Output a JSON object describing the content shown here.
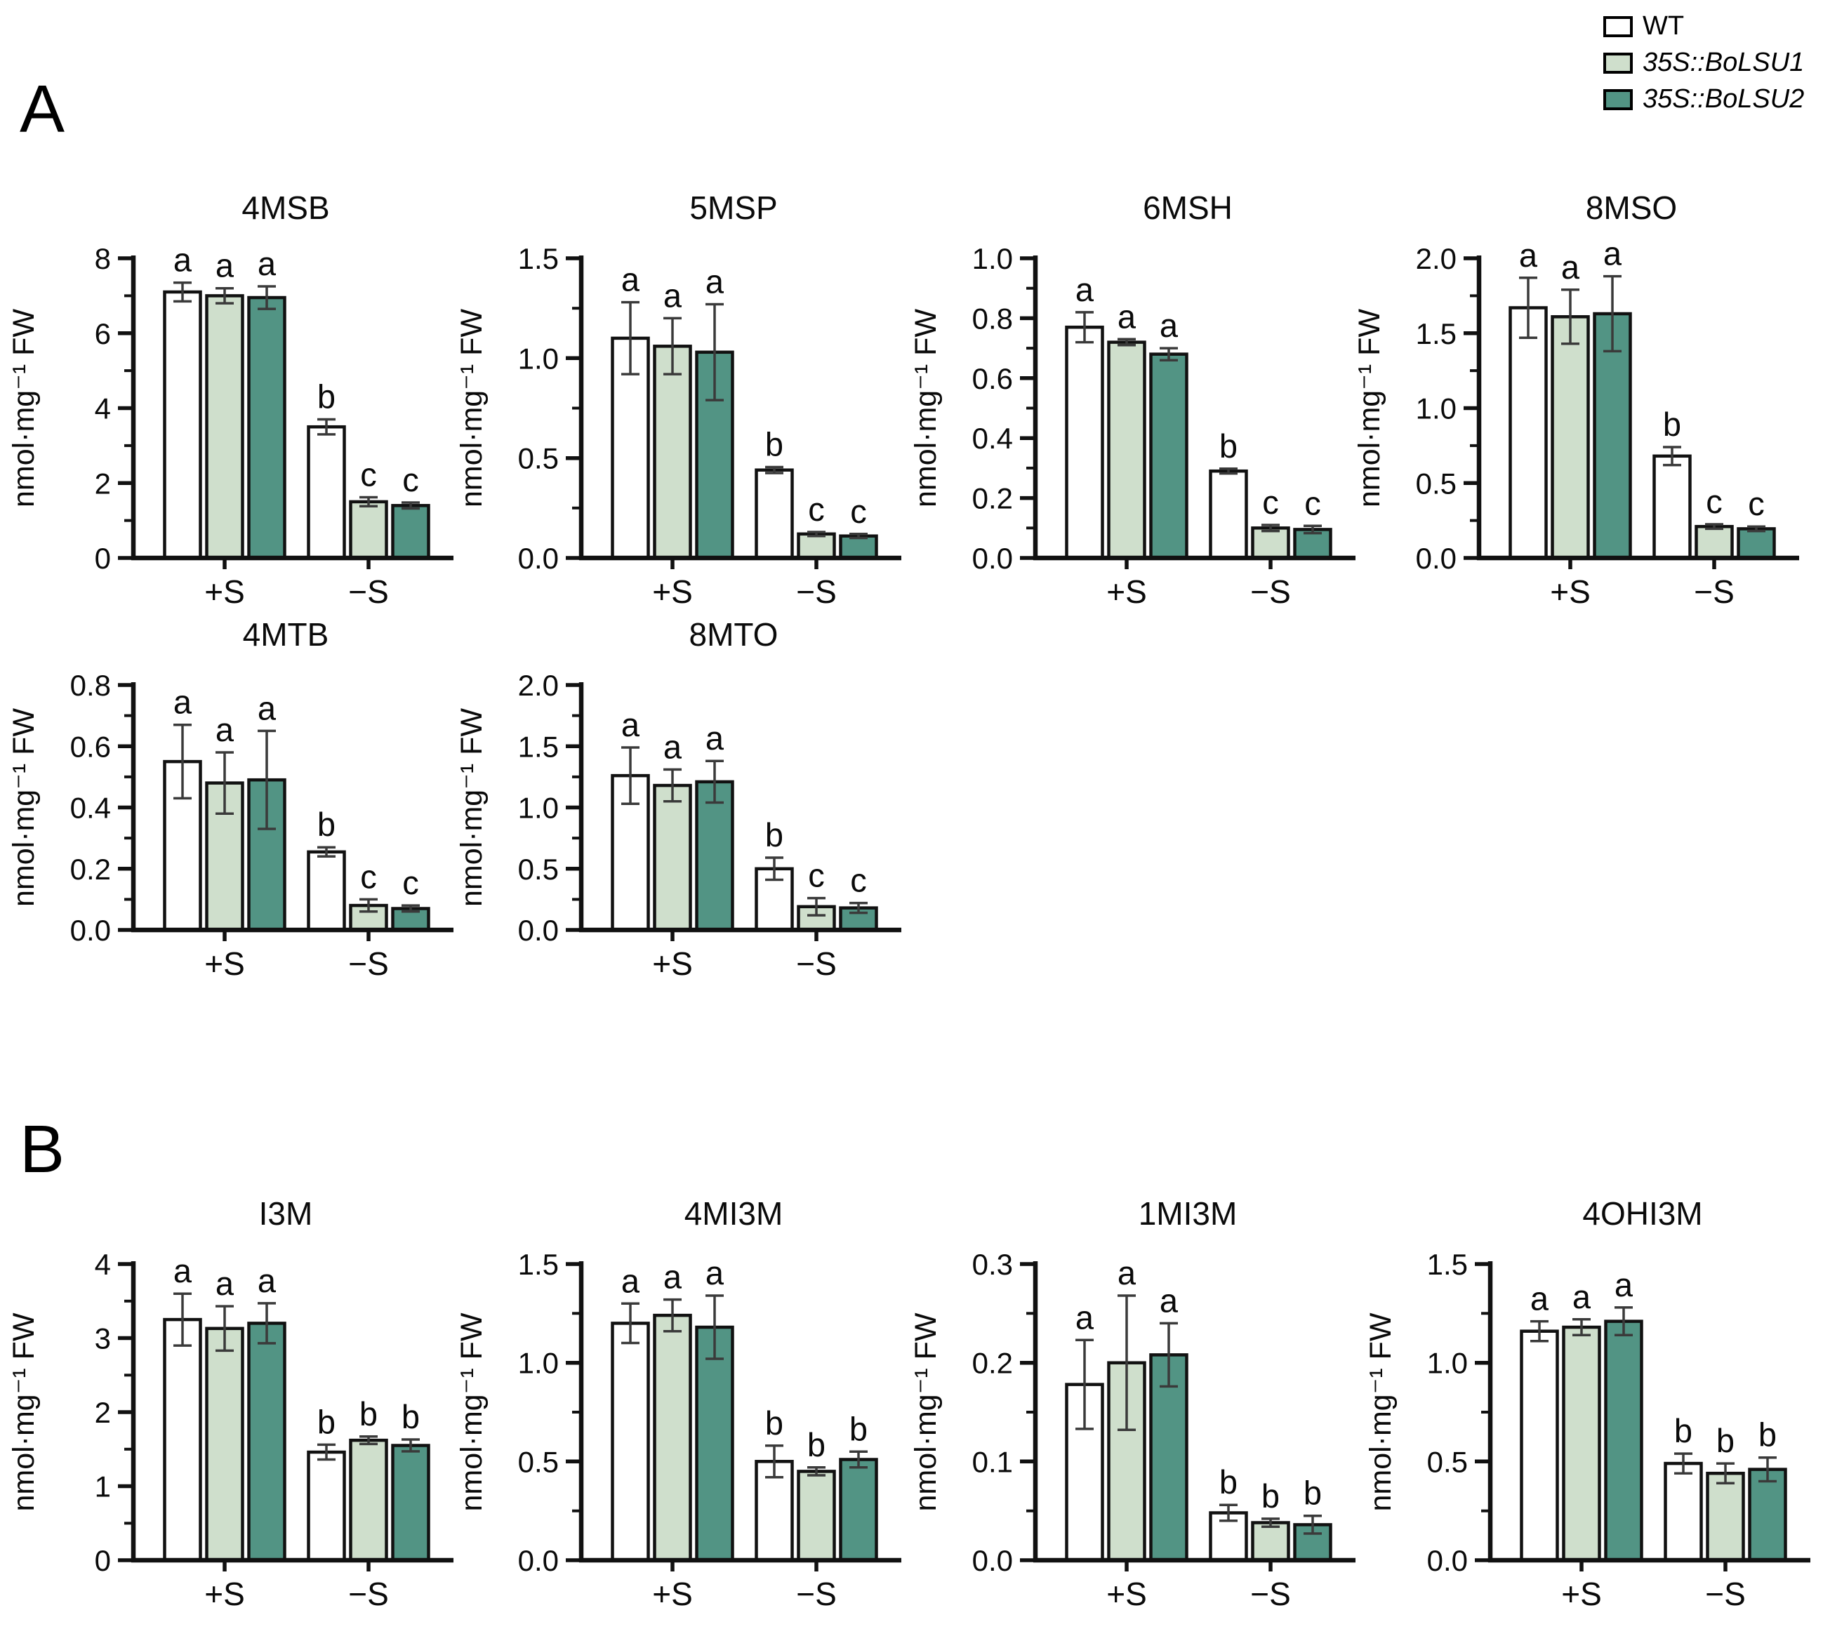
{
  "figure": {
    "panel_a_label": "A",
    "panel_b_label": "B"
  },
  "legend": {
    "items": [
      {
        "label": "WT",
        "color": "#ffffff",
        "italic": false
      },
      {
        "label": "35S::BoLSU1",
        "color": "#cfdfcc",
        "italic": true
      },
      {
        "label": "35S::BoLSU2",
        "color": "#529484",
        "italic": true
      }
    ]
  },
  "colors": {
    "series": [
      "#ffffff",
      "#cfdfcc",
      "#529484"
    ],
    "bar_border": "#111111",
    "error_bar": "#3a3a3a",
    "axis": "#111111"
  },
  "chart_data": [
    {
      "type": "bar",
      "panel": "A",
      "title": "4MSB",
      "ylabel": "nmol·mg⁻¹ FW",
      "ylim": [
        0,
        8
      ],
      "ytick_values": [
        0,
        2,
        4,
        6,
        8
      ],
      "ytick_labels": [
        "0",
        "2",
        "4",
        "6",
        "8"
      ],
      "minor_tick_step": 1,
      "categories": [
        "+S",
        "−S"
      ],
      "series": [
        {
          "name": "WT",
          "values": [
            7.1,
            3.5
          ],
          "errors": [
            0.25,
            0.2
          ],
          "letters": [
            "a",
            "b"
          ]
        },
        {
          "name": "35S::BoLSU1",
          "values": [
            7.0,
            1.5
          ],
          "errors": [
            0.2,
            0.12
          ],
          "letters": [
            "a",
            "c"
          ]
        },
        {
          "name": "35S::BoLSU2",
          "values": [
            6.95,
            1.4
          ],
          "errors": [
            0.3,
            0.08
          ],
          "letters": [
            "a",
            "c"
          ]
        }
      ]
    },
    {
      "type": "bar",
      "panel": "A",
      "title": "5MSP",
      "ylabel": "nmol·mg⁻¹ FW",
      "ylim": [
        0,
        1.5
      ],
      "ytick_values": [
        0,
        0.5,
        1.0,
        1.5
      ],
      "ytick_labels": [
        "0.0",
        "0.5",
        "1.0",
        "1.5"
      ],
      "minor_tick_step": 0.25,
      "categories": [
        "+S",
        "−S"
      ],
      "series": [
        {
          "name": "WT",
          "values": [
            1.1,
            0.44
          ],
          "errors": [
            0.18,
            0.015
          ],
          "letters": [
            "a",
            "b"
          ]
        },
        {
          "name": "35S::BoLSU1",
          "values": [
            1.06,
            0.12
          ],
          "errors": [
            0.14,
            0.01
          ],
          "letters": [
            "a",
            "c"
          ]
        },
        {
          "name": "35S::BoLSU2",
          "values": [
            1.03,
            0.11
          ],
          "errors": [
            0.24,
            0.01
          ],
          "letters": [
            "a",
            "c"
          ]
        }
      ]
    },
    {
      "type": "bar",
      "panel": "A",
      "title": "6MSH",
      "ylabel": "nmol·mg⁻¹ FW",
      "ylim": [
        0,
        1.0
      ],
      "ytick_values": [
        0,
        0.2,
        0.4,
        0.6,
        0.8,
        1.0
      ],
      "ytick_labels": [
        "0.0",
        "0.2",
        "0.4",
        "0.6",
        "0.8",
        "1.0"
      ],
      "minor_tick_step": 0.1,
      "categories": [
        "+S",
        "−S"
      ],
      "series": [
        {
          "name": "WT",
          "values": [
            0.77,
            0.29
          ],
          "errors": [
            0.05,
            0.008
          ],
          "letters": [
            "a",
            "b"
          ]
        },
        {
          "name": "35S::BoLSU1",
          "values": [
            0.72,
            0.1
          ],
          "errors": [
            0.01,
            0.01
          ],
          "letters": [
            "a",
            "c"
          ]
        },
        {
          "name": "35S::BoLSU2",
          "values": [
            0.68,
            0.095
          ],
          "errors": [
            0.02,
            0.012
          ],
          "letters": [
            "a",
            "c"
          ]
        }
      ]
    },
    {
      "type": "bar",
      "panel": "A",
      "title": "8MSO",
      "ylabel": "nmol·mg⁻¹ FW",
      "ylim": [
        0,
        2.0
      ],
      "ytick_values": [
        0,
        0.5,
        1.0,
        1.5,
        2.0
      ],
      "ytick_labels": [
        "0.0",
        "0.5",
        "1.0",
        "1.5",
        "2.0"
      ],
      "minor_tick_step": 0.25,
      "categories": [
        "+S",
        "−S"
      ],
      "series": [
        {
          "name": "WT",
          "values": [
            1.67,
            0.68
          ],
          "errors": [
            0.2,
            0.06
          ],
          "letters": [
            "a",
            "b"
          ]
        },
        {
          "name": "35S::BoLSU1",
          "values": [
            1.61,
            0.21
          ],
          "errors": [
            0.18,
            0.015
          ],
          "letters": [
            "a",
            "c"
          ]
        },
        {
          "name": "35S::BoLSU2",
          "values": [
            1.63,
            0.195
          ],
          "errors": [
            0.25,
            0.015
          ],
          "letters": [
            "a",
            "c"
          ]
        }
      ]
    },
    {
      "type": "bar",
      "panel": "A",
      "title": "4MTB",
      "ylabel": "nmol·mg⁻¹ FW",
      "ylim": [
        0,
        0.8
      ],
      "ytick_values": [
        0,
        0.2,
        0.4,
        0.6,
        0.8
      ],
      "ytick_labels": [
        "0.0",
        "0.2",
        "0.4",
        "0.6",
        "0.8"
      ],
      "minor_tick_step": 0.1,
      "categories": [
        "+S",
        "−S"
      ],
      "series": [
        {
          "name": "WT",
          "values": [
            0.55,
            0.255
          ],
          "errors": [
            0.12,
            0.015
          ],
          "letters": [
            "a",
            "b"
          ]
        },
        {
          "name": "35S::BoLSU1",
          "values": [
            0.48,
            0.08
          ],
          "errors": [
            0.1,
            0.02
          ],
          "letters": [
            "a",
            "c"
          ]
        },
        {
          "name": "35S::BoLSU2",
          "values": [
            0.49,
            0.07
          ],
          "errors": [
            0.16,
            0.01
          ],
          "letters": [
            "a",
            "c"
          ]
        }
      ]
    },
    {
      "type": "bar",
      "panel": "A",
      "title": "8MTO",
      "ylabel": "nmol·mg⁻¹ FW",
      "ylim": [
        0,
        2.0
      ],
      "ytick_values": [
        0,
        0.5,
        1.0,
        1.5,
        2.0
      ],
      "ytick_labels": [
        "0.0",
        "0.5",
        "1.0",
        "1.5",
        "2.0"
      ],
      "minor_tick_step": 0.25,
      "categories": [
        "+S",
        "−S"
      ],
      "series": [
        {
          "name": "WT",
          "values": [
            1.26,
            0.5
          ],
          "errors": [
            0.23,
            0.09
          ],
          "letters": [
            "a",
            "b"
          ]
        },
        {
          "name": "35S::BoLSU1",
          "values": [
            1.18,
            0.19
          ],
          "errors": [
            0.13,
            0.07
          ],
          "letters": [
            "a",
            "c"
          ]
        },
        {
          "name": "35S::BoLSU2",
          "values": [
            1.21,
            0.18
          ],
          "errors": [
            0.17,
            0.04
          ],
          "letters": [
            "a",
            "c"
          ]
        }
      ]
    },
    {
      "type": "bar",
      "panel": "B",
      "title": "I3M",
      "ylabel": "nmol·mg⁻¹ FW",
      "ylim": [
        0,
        4
      ],
      "ytick_values": [
        0,
        1,
        2,
        3,
        4
      ],
      "ytick_labels": [
        "0",
        "1",
        "2",
        "3",
        "4"
      ],
      "minor_tick_step": 0.5,
      "categories": [
        "+S",
        "−S"
      ],
      "series": [
        {
          "name": "WT",
          "values": [
            3.25,
            1.46
          ],
          "errors": [
            0.35,
            0.1
          ],
          "letters": [
            "a",
            "b"
          ]
        },
        {
          "name": "35S::BoLSU1",
          "values": [
            3.13,
            1.62
          ],
          "errors": [
            0.3,
            0.05
          ],
          "letters": [
            "a",
            "b"
          ]
        },
        {
          "name": "35S::BoLSU2",
          "values": [
            3.2,
            1.55
          ],
          "errors": [
            0.27,
            0.08
          ],
          "letters": [
            "a",
            "b"
          ]
        }
      ]
    },
    {
      "type": "bar",
      "panel": "B",
      "title": "4MI3M",
      "ylabel": "nmol·mg⁻¹ FW",
      "ylim": [
        0,
        1.5
      ],
      "ytick_values": [
        0,
        0.5,
        1.0,
        1.5
      ],
      "ytick_labels": [
        "0.0",
        "0.5",
        "1.0",
        "1.5"
      ],
      "minor_tick_step": 0.25,
      "categories": [
        "+S",
        "−S"
      ],
      "series": [
        {
          "name": "WT",
          "values": [
            1.2,
            0.5
          ],
          "errors": [
            0.1,
            0.08
          ],
          "letters": [
            "a",
            "b"
          ]
        },
        {
          "name": "35S::BoLSU1",
          "values": [
            1.24,
            0.45
          ],
          "errors": [
            0.08,
            0.02
          ],
          "letters": [
            "a",
            "b"
          ]
        },
        {
          "name": "35S::BoLSU2",
          "values": [
            1.18,
            0.51
          ],
          "errors": [
            0.16,
            0.04
          ],
          "letters": [
            "a",
            "b"
          ]
        }
      ]
    },
    {
      "type": "bar",
      "panel": "B",
      "title": "1MI3M",
      "ylabel": "nmol·mg⁻¹ FW",
      "ylim": [
        0,
        0.3
      ],
      "ytick_values": [
        0,
        0.1,
        0.2,
        0.3
      ],
      "ytick_labels": [
        "0.0",
        "0.1",
        "0.2",
        "0.3"
      ],
      "minor_tick_step": 0.05,
      "categories": [
        "+S",
        "−S"
      ],
      "series": [
        {
          "name": "WT",
          "values": [
            0.178,
            0.048
          ],
          "errors": [
            0.045,
            0.008
          ],
          "letters": [
            "a",
            "b"
          ]
        },
        {
          "name": "35S::BoLSU1",
          "values": [
            0.2,
            0.038
          ],
          "errors": [
            0.068,
            0.004
          ],
          "letters": [
            "a",
            "b"
          ]
        },
        {
          "name": "35S::BoLSU2",
          "values": [
            0.208,
            0.036
          ],
          "errors": [
            0.032,
            0.009
          ],
          "letters": [
            "a",
            "b"
          ]
        }
      ]
    },
    {
      "type": "bar",
      "panel": "B",
      "title": "4OHI3M",
      "ylabel": "nmol·mg⁻¹ FW",
      "ylim": [
        0,
        1.5
      ],
      "ytick_values": [
        0,
        0.5,
        1.0,
        1.5
      ],
      "ytick_labels": [
        "0.0",
        "0.5",
        "1.0",
        "1.5"
      ],
      "minor_tick_step": 0.25,
      "categories": [
        "+S",
        "−S"
      ],
      "series": [
        {
          "name": "WT",
          "values": [
            1.16,
            0.49
          ],
          "errors": [
            0.05,
            0.05
          ],
          "letters": [
            "a",
            "b"
          ]
        },
        {
          "name": "35S::BoLSU1",
          "values": [
            1.18,
            0.44
          ],
          "errors": [
            0.04,
            0.05
          ],
          "letters": [
            "a",
            "b"
          ]
        },
        {
          "name": "35S::BoLSU2",
          "values": [
            1.21,
            0.46
          ],
          "errors": [
            0.07,
            0.06
          ],
          "letters": [
            "a",
            "b"
          ]
        }
      ]
    }
  ]
}
